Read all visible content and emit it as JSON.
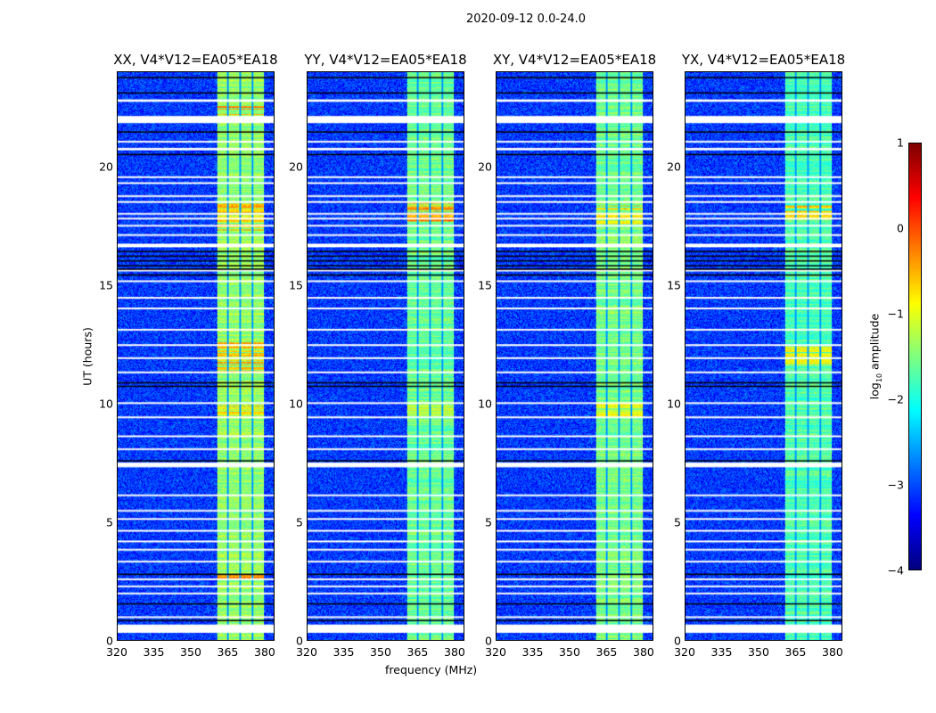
{
  "suptitle": "2020-09-12 0.0-24.0",
  "chart_data": {
    "type": "heatmap",
    "xlabel": "frequency (MHz)",
    "ylabel": "UT (hours)",
    "xlim": [
      320,
      384
    ],
    "ylim": [
      0,
      24
    ],
    "xticks": [
      "320",
      "335",
      "350",
      "365",
      "380"
    ],
    "yticks": [
      "0",
      "5",
      "10",
      "15",
      "20"
    ],
    "colorbar": {
      "label": "log10 amplitude",
      "label_main": "log",
      "label_sub": "10",
      "label_rest": " amplitude",
      "range": [
        -4,
        1
      ],
      "ticks": [
        "1",
        "0",
        "−1",
        "−2",
        "−3",
        "−4"
      ],
      "colormap": "jet"
    },
    "rfi_band_MHz": [
      360.5,
      380
    ],
    "subband_edges_MHz": [
      365,
      370,
      375
    ],
    "background_level": -3.1,
    "flagged_hours": [
      [
        0.3,
        0.65
      ],
      [
        0.95,
        1.0
      ],
      [
        1.95,
        2.0
      ],
      [
        2.25,
        2.3
      ],
      [
        2.55,
        2.6
      ],
      [
        3.3,
        3.35
      ],
      [
        3.8,
        3.85
      ],
      [
        4.15,
        4.2
      ],
      [
        4.6,
        4.65
      ],
      [
        5.1,
        5.15
      ],
      [
        5.45,
        5.5
      ],
      [
        6.1,
        6.15
      ],
      [
        7.3,
        7.5
      ],
      [
        8.05,
        8.1
      ],
      [
        8.6,
        8.65
      ],
      [
        9.4,
        9.45
      ],
      [
        10.0,
        10.05
      ],
      [
        11.3,
        11.35
      ],
      [
        11.9,
        11.95
      ],
      [
        12.45,
        12.5
      ],
      [
        13.1,
        13.15
      ],
      [
        14.0,
        14.05
      ],
      [
        14.45,
        14.5
      ],
      [
        15.15,
        15.2
      ],
      [
        15.6,
        15.65
      ],
      [
        16.6,
        16.75
      ],
      [
        17.1,
        17.15
      ],
      [
        17.5,
        17.55
      ],
      [
        17.8,
        17.85
      ],
      [
        18.0,
        18.05
      ],
      [
        18.5,
        18.55
      ],
      [
        18.75,
        18.8
      ],
      [
        19.3,
        19.35
      ],
      [
        19.55,
        19.6
      ],
      [
        20.7,
        20.8
      ],
      [
        21.05,
        21.1
      ],
      [
        21.85,
        22.15
      ],
      [
        22.75,
        22.85
      ]
    ],
    "black_lines_hours": [
      0.85,
      1.55,
      2.8,
      7.6,
      10.75,
      10.9,
      15.45,
      15.7,
      15.85,
      16.05,
      16.25,
      16.45,
      20.55,
      21.5,
      23.15,
      23.8
    ],
    "panels": [
      {
        "title": "XX, V4*V12=EA05*EA18",
        "band_level": -1.4,
        "hot": [
          [
            2.6,
            2.85,
            -0.4
          ],
          [
            9.3,
            10.1,
            -0.8
          ],
          [
            11.3,
            12.6,
            -0.6
          ],
          [
            17.3,
            18.6,
            -0.6
          ],
          [
            22.2,
            22.6,
            -0.3
          ]
        ]
      },
      {
        "title": "YY, V4*V12=EA05*EA18",
        "band_level": -1.6,
        "hot": [
          [
            17.6,
            18.6,
            -0.4
          ],
          [
            9.4,
            10.1,
            -1.1
          ]
        ]
      },
      {
        "title": "XY, V4*V12=EA05*EA18",
        "band_level": -1.55,
        "hot": [
          [
            17.6,
            18.4,
            -0.8
          ],
          [
            9.4,
            10.0,
            -1.0
          ]
        ]
      },
      {
        "title": "YX, V4*V12=EA05*EA18",
        "band_level": -1.75,
        "hot": [
          [
            17.8,
            18.4,
            -0.7
          ],
          [
            11.6,
            12.4,
            -1.0
          ]
        ]
      }
    ]
  }
}
